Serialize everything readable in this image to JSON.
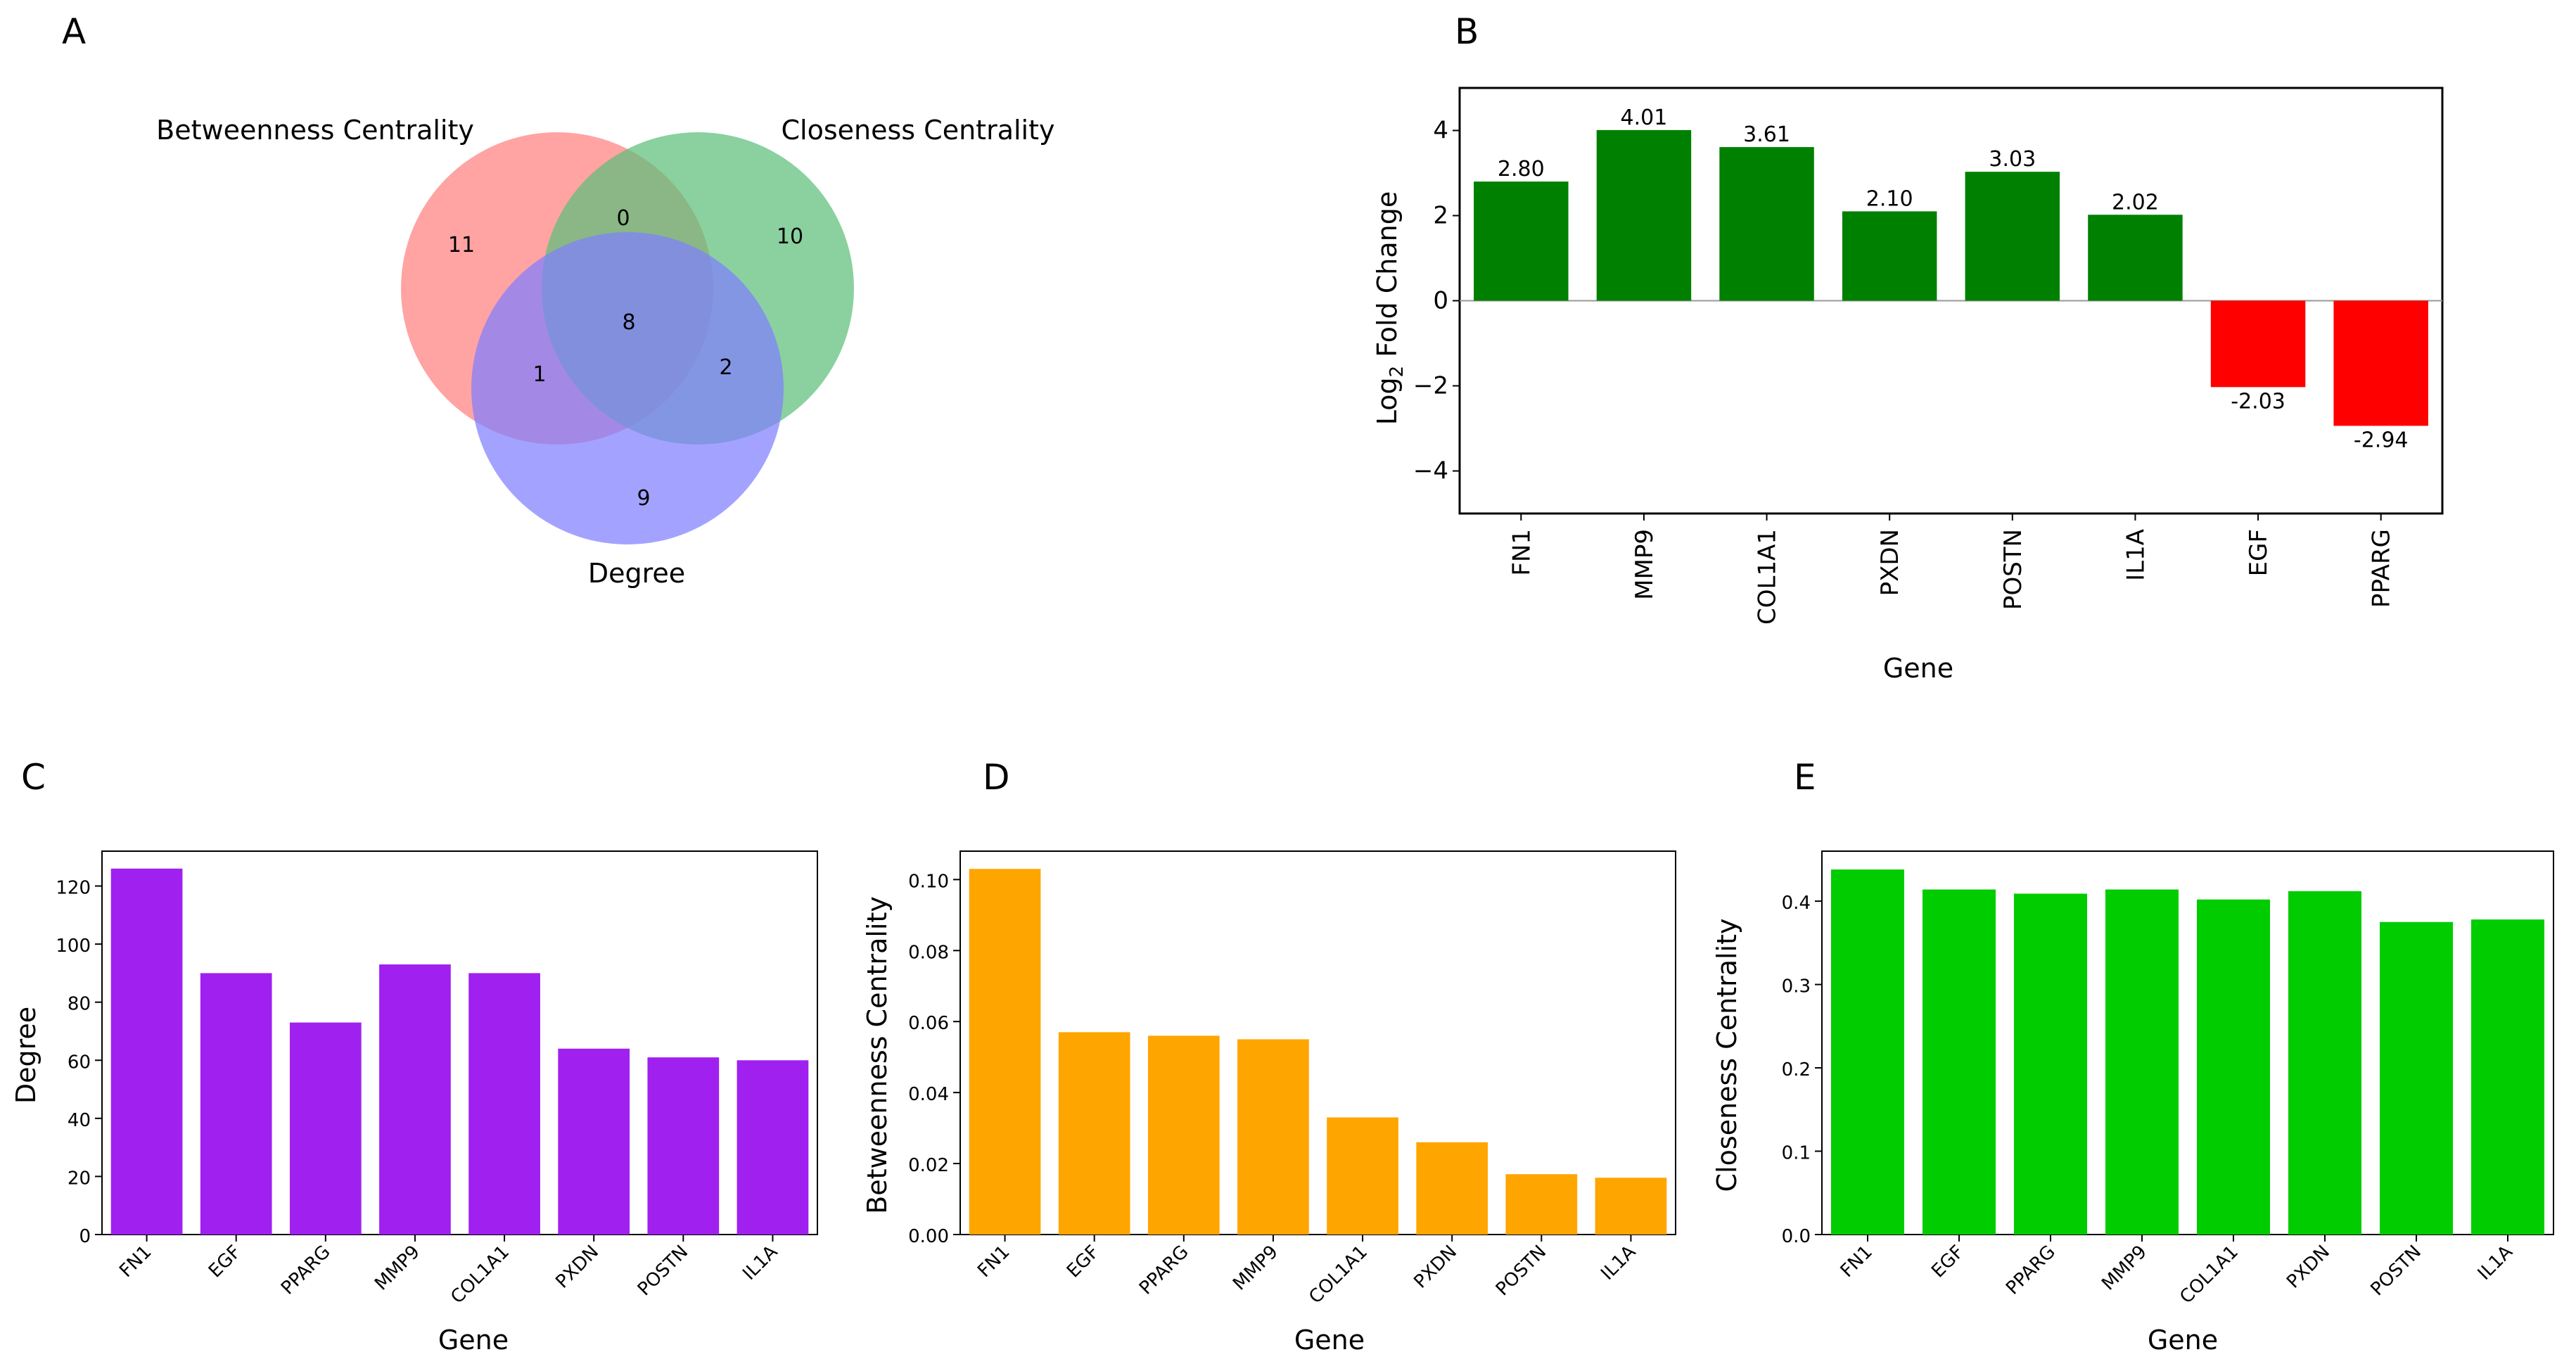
{
  "panels": {
    "a": "A",
    "b": "B",
    "c": "C",
    "d": "D",
    "e": "E"
  },
  "chart_data": [
    {
      "panel": "A",
      "type": "venn",
      "sets": [
        "Betweenness Centrality",
        "Closeness Centrality",
        "Degree"
      ],
      "regions": {
        "betweenness_only": "11",
        "closeness_only": "10",
        "degree_only": "9",
        "betweenness_closeness": "0",
        "betweenness_degree": "1",
        "closeness_degree": "2",
        "all_three": "8"
      },
      "colors": {
        "betweenness": "#ff7f7f",
        "closeness": "#5dbf7a",
        "degree": "#8080ff"
      }
    },
    {
      "panel": "B",
      "type": "bar",
      "categories": [
        "FN1",
        "MMP9",
        "COL1A1",
        "PXDN",
        "POSTN",
        "IL1A",
        "EGF",
        "PPARG"
      ],
      "values": [
        2.8,
        4.01,
        3.61,
        2.1,
        3.03,
        2.02,
        -2.03,
        -2.94
      ],
      "value_labels": [
        "2.80",
        "4.01",
        "3.61",
        "2.10",
        "3.03",
        "2.02",
        "-2.03",
        "-2.94"
      ],
      "ylabel_prefix": "Log",
      "ylabel_sub": "2",
      "ylabel_suffix": " Fold Change",
      "xlabel": "Gene",
      "ylim": [
        -5,
        5
      ],
      "yticks": [
        -4,
        -2,
        0,
        2,
        4
      ],
      "ytick_labels": [
        "−4",
        "−2",
        "0",
        "2",
        "4"
      ],
      "positive_color": "#008000",
      "negative_color": "#ff0000"
    },
    {
      "panel": "C",
      "type": "bar",
      "categories": [
        "FN1",
        "EGF",
        "PPARG",
        "MMP9",
        "COL1A1",
        "PXDN",
        "POSTN",
        "IL1A"
      ],
      "values": [
        126,
        90,
        73,
        93,
        90,
        64,
        61,
        60
      ],
      "ylabel": "Degree",
      "xlabel": "Gene",
      "ylim": [
        0,
        132
      ],
      "yticks": [
        0,
        20,
        40,
        60,
        80,
        100,
        120
      ],
      "ytick_labels": [
        "0",
        "20",
        "40",
        "60",
        "80",
        "100",
        "120"
      ],
      "color": "#a020f0"
    },
    {
      "panel": "D",
      "type": "bar",
      "categories": [
        "FN1",
        "EGF",
        "PPARG",
        "MMP9",
        "COL1A1",
        "PXDN",
        "POSTN",
        "IL1A"
      ],
      "values": [
        0.103,
        0.057,
        0.056,
        0.055,
        0.033,
        0.026,
        0.017,
        0.016
      ],
      "ylabel": "Betweenness Centrality",
      "xlabel": "Gene",
      "ylim": [
        0,
        0.108
      ],
      "yticks": [
        0,
        0.02,
        0.04,
        0.06,
        0.08,
        0.1
      ],
      "ytick_labels": [
        "0.00",
        "0.02",
        "0.04",
        "0.06",
        "0.08",
        "0.10"
      ],
      "color": "#ffa500"
    },
    {
      "panel": "E",
      "type": "bar",
      "categories": [
        "FN1",
        "EGF",
        "PPARG",
        "MMP9",
        "COL1A1",
        "PXDN",
        "POSTN",
        "IL1A"
      ],
      "values": [
        0.438,
        0.414,
        0.409,
        0.414,
        0.402,
        0.412,
        0.375,
        0.378
      ],
      "ylabel": "Closeness Centrality",
      "xlabel": "Gene",
      "ylim": [
        0,
        0.46
      ],
      "yticks": [
        0,
        0.1,
        0.2,
        0.3,
        0.4
      ],
      "ytick_labels": [
        "0.0",
        "0.1",
        "0.2",
        "0.3",
        "0.4"
      ],
      "color": "#00cc00"
    }
  ]
}
